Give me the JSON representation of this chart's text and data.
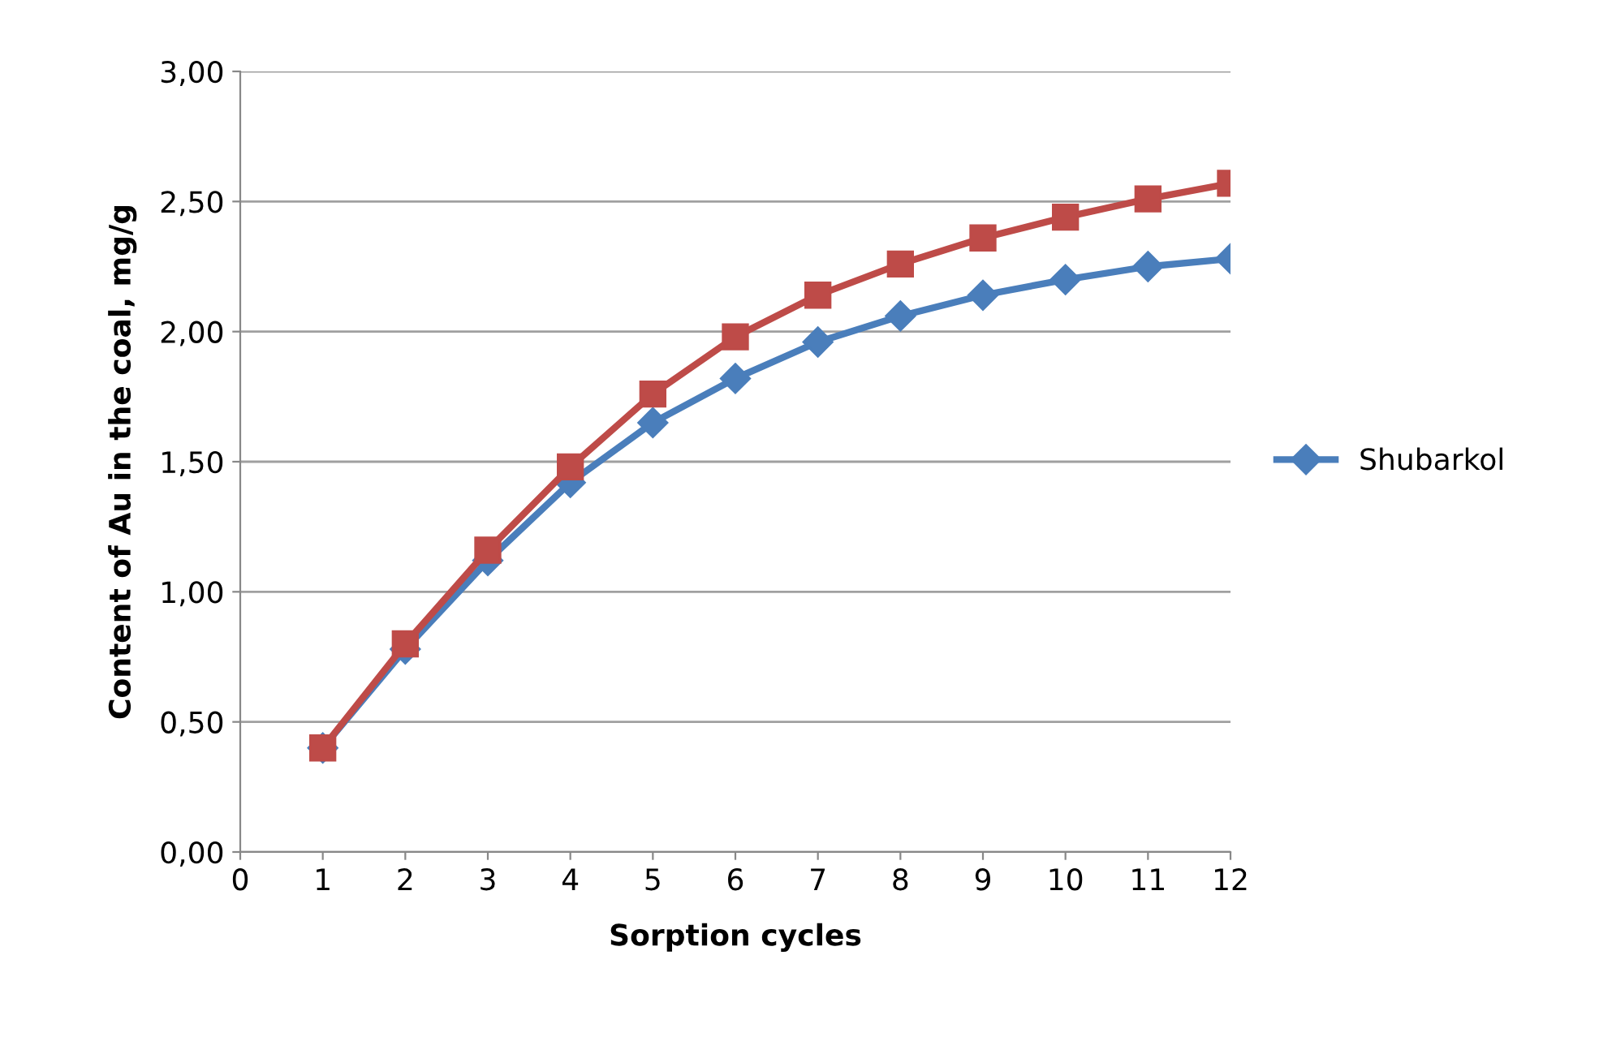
{
  "chart_data": {
    "type": "line",
    "xlabel": "Sorption cycles",
    "ylabel": "Content of Au in the coal, mg/g",
    "x": [
      1,
      2,
      3,
      4,
      5,
      6,
      7,
      8,
      9,
      10,
      11,
      12
    ],
    "series": [
      {
        "name": "Shubarkol",
        "color": "#4a7ebb",
        "marker": "diamond",
        "values": [
          0.4,
          0.78,
          1.12,
          1.42,
          1.65,
          1.82,
          1.96,
          2.06,
          2.14,
          2.2,
          2.25,
          2.28
        ]
      },
      {
        "color": "#be4b48",
        "marker": "square",
        "values": [
          0.4,
          0.8,
          1.16,
          1.48,
          1.76,
          1.98,
          2.14,
          2.26,
          2.36,
          2.44,
          2.51,
          2.57
        ]
      }
    ],
    "xlim": [
      0,
      12
    ],
    "xticks": [
      0,
      1,
      2,
      3,
      4,
      5,
      6,
      7,
      8,
      9,
      10,
      11,
      12
    ],
    "ylim": [
      0,
      3
    ],
    "yticks": [
      {
        "value": 0,
        "label": "0,00"
      },
      {
        "value": 0.5,
        "label": "0,50"
      },
      {
        "value": 1,
        "label": "1,00"
      },
      {
        "value": 1.5,
        "label": "1,50"
      },
      {
        "value": 2,
        "label": "2,00"
      },
      {
        "value": 2.5,
        "label": "2,50"
      },
      {
        "value": 3,
        "label": "3,00"
      }
    ],
    "grid": "y",
    "legend": "right"
  }
}
